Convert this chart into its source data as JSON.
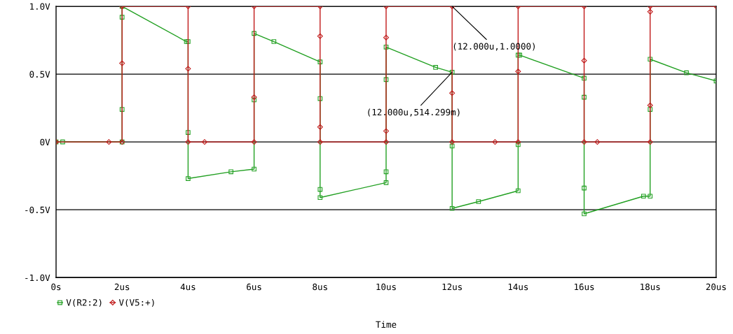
{
  "chart_data": {
    "type": "line",
    "xlabel": "Time",
    "xlim": [
      0,
      20
    ],
    "xticks": [
      {
        "value": 0,
        "label": "0s"
      },
      {
        "value": 2,
        "label": "2us"
      },
      {
        "value": 4,
        "label": "4us"
      },
      {
        "value": 6,
        "label": "6us"
      },
      {
        "value": 8,
        "label": "8us"
      },
      {
        "value": 10,
        "label": "10us"
      },
      {
        "value": 12,
        "label": "12us"
      },
      {
        "value": 14,
        "label": "14us"
      },
      {
        "value": 16,
        "label": "16us"
      },
      {
        "value": 18,
        "label": "18us"
      },
      {
        "value": 20,
        "label": "20us"
      }
    ],
    "ylim": [
      -1.0,
      1.0
    ],
    "yticks": [
      {
        "value": -1.0,
        "label": "-1.0V"
      },
      {
        "value": -0.5,
        "label": "-0.5V"
      },
      {
        "value": 0,
        "label": "0V"
      },
      {
        "value": 0.5,
        "label": "0.5V"
      },
      {
        "value": 1.0,
        "label": "1.0V"
      }
    ],
    "grid": "y",
    "legend": "bottom left",
    "series": [
      {
        "name": "V(R2:2)",
        "color": "#22a022",
        "marker": "square",
        "x": [
          0,
          0.2,
          2,
          2,
          2,
          2,
          3.95,
          4,
          4,
          4,
          5.3,
          6,
          6,
          6,
          6.6,
          8,
          8,
          8,
          8,
          10,
          10,
          10,
          10,
          11.5,
          12,
          12,
          12,
          12.8,
          14,
          14,
          14,
          14.05,
          16,
          16,
          16,
          16,
          17.8,
          18,
          18,
          18,
          19.1,
          20
        ],
        "values": [
          0,
          0,
          0,
          0.24,
          0.92,
          1.0,
          0.74,
          0.74,
          0.07,
          -0.27,
          -0.22,
          -0.2,
          0.31,
          0.8,
          0.74,
          0.59,
          0.32,
          -0.35,
          -0.41,
          -0.3,
          -0.22,
          0.46,
          0.7,
          0.55,
          0.514,
          -0.03,
          -0.49,
          -0.44,
          -0.36,
          -0.02,
          0.64,
          0.64,
          0.47,
          0.33,
          -0.34,
          -0.53,
          -0.4,
          -0.4,
          0.24,
          0.61,
          0.51,
          0.45
        ]
      },
      {
        "name": "V(V5:+)",
        "color": "#c01818",
        "marker": "diamond",
        "x": [
          0,
          1.6,
          2,
          2,
          2,
          4,
          4,
          4,
          4.5,
          6,
          6,
          6,
          8,
          8,
          8,
          8,
          10,
          10,
          10,
          10,
          12,
          12,
          12,
          13.3,
          14,
          14,
          14,
          16,
          16,
          16,
          16.4,
          18,
          18,
          18,
          18,
          20
        ],
        "values": [
          0,
          0,
          0,
          0.58,
          1.0,
          1.0,
          0.54,
          0,
          0,
          0,
          0.33,
          1.0,
          1.0,
          0.78,
          0.11,
          0,
          0,
          0.08,
          0.77,
          1.0,
          1.0,
          0.36,
          0,
          0,
          0,
          0.52,
          1.0,
          1.0,
          0.6,
          0,
          0,
          0,
          0.27,
          0.96,
          1.0,
          1.0
        ]
      }
    ],
    "annotations": [
      {
        "text": "(12.000u,1.0000)",
        "x": 12,
        "y": 1.0
      },
      {
        "text": "(12.000u,514.299m)",
        "x": 12,
        "y": 0.514
      }
    ]
  }
}
